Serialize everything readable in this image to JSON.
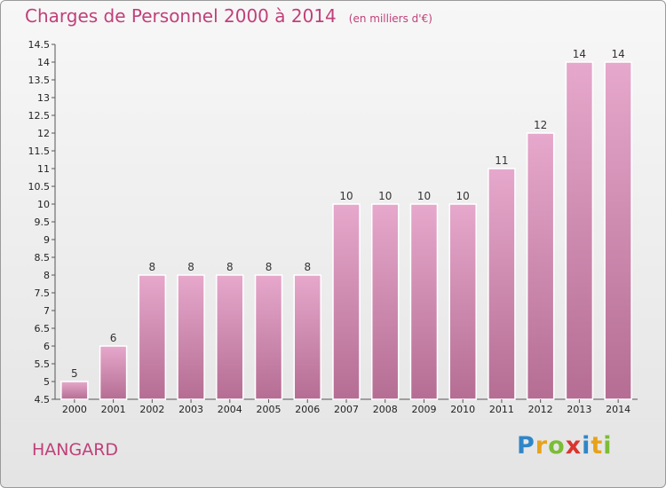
{
  "chart_data": {
    "type": "bar",
    "title": "Charges de Personnel 2000 à 2014",
    "unit_note": "(en milliers d'€)",
    "categories": [
      "2000",
      "2001",
      "2002",
      "2003",
      "2004",
      "2005",
      "2006",
      "2007",
      "2008",
      "2009",
      "2010",
      "2011",
      "2012",
      "2013",
      "2014"
    ],
    "values": [
      5,
      6,
      8,
      8,
      8,
      8,
      8,
      10,
      10,
      10,
      10,
      11,
      12,
      14,
      14
    ],
    "value_labels": [
      "5",
      "6",
      "8",
      "8",
      "8",
      "8",
      "8",
      "10",
      "10",
      "10",
      "10",
      "11",
      "12",
      "14",
      "14"
    ],
    "ylim": [
      4.5,
      14.5
    ],
    "yticks": [
      "4.5",
      "5",
      "5.5",
      "6",
      "6.5",
      "7",
      "7.5",
      "8",
      "8.5",
      "9",
      "9.5",
      "10",
      "10.5",
      "11",
      "11.5",
      "12",
      "12.5",
      "13",
      "13.5",
      "14",
      "14.5"
    ],
    "grid": false,
    "bar_color_top": "#e6a8cc",
    "bar_color_bottom": "#b56d93"
  },
  "commune": "HANGARD",
  "logo": {
    "letters": [
      "P",
      "r",
      "o",
      "x",
      "i",
      "t",
      "i"
    ],
    "colors": [
      "#2f86c8",
      "#e8a21a",
      "#7bbd36",
      "#d9362f",
      "#2f86c8",
      "#e8a21a",
      "#7bbd36"
    ]
  }
}
